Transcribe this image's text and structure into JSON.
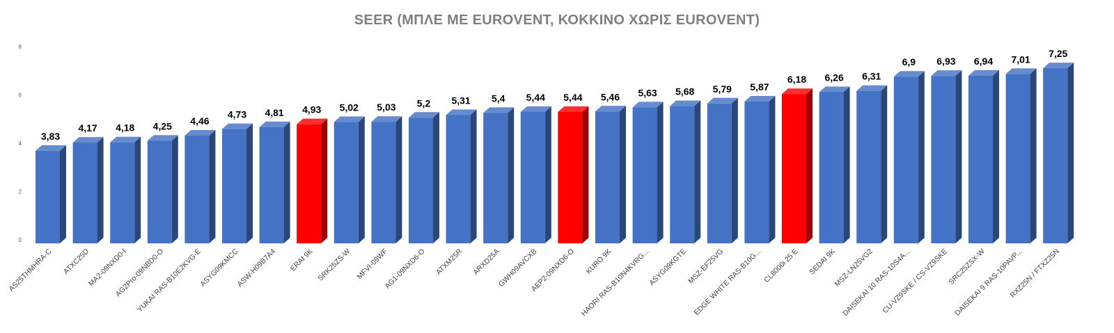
{
  "chart_data": {
    "type": "bar",
    "style": "3d-column",
    "title": "SEER (ΜΠΛΕ ΜΕ EUROVENT, ΚΟΚΚΙΝΟ ΧΩΡΙΣ EUROVENT)",
    "ylim": [
      0,
      8
    ],
    "yticks": [
      "0",
      "2",
      "4",
      "6",
      "8"
    ],
    "grid": false,
    "legend": "none",
    "colors": {
      "blue": "#4472c4",
      "red": "#ff0000"
    },
    "categories": [
      "AS25THMHRA-C",
      "ATXC25D",
      "MA2-09NXD0-I",
      "AG2Pro-09NBD0-O",
      "YUKAI RAS-B10E2KVG-E",
      "ASYG09KMCC",
      "ASW-H09B7A4",
      "ERAI 9K",
      "SRK25ZS-W",
      "MFVI-09WF",
      "AG1-09NXD6-O",
      "ATXM25R",
      "ARXD25A",
      "GWH09AVCXB",
      "AEP2-09NXD6-O",
      "KURO 9K",
      "HAORI RAS-B10N4KVRG...",
      "ASYG09KGTE",
      "MSZ-EF25VG",
      "EDGE WHITE RAS-B10G...",
      "CL8000i 25 E",
      "SEDAI 9K",
      "MSZ-LN25VG2",
      "DAISEKAI 10 RAS-10S4A...",
      "CU-VZ9SKE / CS-VZ9SKE",
      "SRC25ZSX-W",
      "DAISEKAI 9 RAS-10PAVP...",
      "RXZ25N / FTXZ25N"
    ],
    "values": [
      3.83,
      4.17,
      4.18,
      4.25,
      4.46,
      4.73,
      4.81,
      4.93,
      5.02,
      5.03,
      5.2,
      5.31,
      5.4,
      5.44,
      5.44,
      5.46,
      5.63,
      5.68,
      5.79,
      5.87,
      6.18,
      6.26,
      6.31,
      6.9,
      6.93,
      6.94,
      7.01,
      7.25
    ],
    "value_labels": [
      "3,83",
      "4,17",
      "4,18",
      "4,25",
      "4,46",
      "4,73",
      "4,81",
      "4,93",
      "5,02",
      "5,03",
      "5,2",
      "5,31",
      "5,4",
      "5,44",
      "5,44",
      "5,46",
      "5,63",
      "5,68",
      "5,79",
      "5,87",
      "6,18",
      "6,26",
      "6,31",
      "6,9",
      "6,93",
      "6,94",
      "7,01",
      "7,25"
    ],
    "bar_colors": [
      "blue",
      "blue",
      "blue",
      "blue",
      "blue",
      "blue",
      "blue",
      "red",
      "blue",
      "blue",
      "blue",
      "blue",
      "blue",
      "blue",
      "red",
      "blue",
      "blue",
      "blue",
      "blue",
      "blue",
      "red",
      "blue",
      "blue",
      "blue",
      "blue",
      "blue",
      "blue",
      "blue"
    ]
  }
}
